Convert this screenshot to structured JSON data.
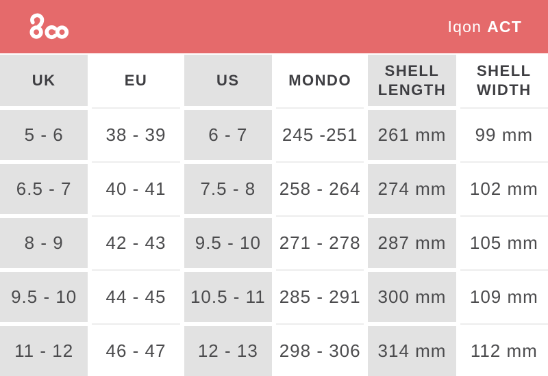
{
  "brand": {
    "logo_name": "loco-logo",
    "product_name": "Iqon",
    "product_variant": "ACT"
  },
  "colors": {
    "accent": "#e56a6b",
    "cell_gray": "#e2e2e2",
    "divider": "#ededed",
    "head_text": "#3e3e42",
    "data_text": "#4b4b4d",
    "logo_white": "#ffffff"
  },
  "chart_data": {
    "type": "table",
    "columns": [
      "UK",
      "EU",
      "US",
      "MONDO",
      "SHELL\nLENGTH",
      "SHELL\nWIDTH"
    ],
    "rows": [
      [
        "5 - 6",
        "38 - 39",
        "6 - 7",
        "245 -251",
        "261 mm",
        "99 mm"
      ],
      [
        "6.5 - 7",
        "40 - 41",
        "7.5 - 8",
        "258 - 264",
        "274 mm",
        "102 mm"
      ],
      [
        "8 - 9",
        "42 - 43",
        "9.5 - 10",
        "271 - 278",
        "287 mm",
        "105 mm"
      ],
      [
        "9.5 - 10",
        "44 - 45",
        "10.5 - 11",
        "285 - 291",
        "300 mm",
        "109 mm"
      ],
      [
        "11 - 12",
        "46 - 47",
        "12 - 13",
        "298 - 306",
        "314 mm",
        "112 mm"
      ]
    ],
    "layout": {
      "shaded_columns": [
        0,
        2,
        4
      ],
      "header_position": "top",
      "grid": "white gaps between cells"
    }
  }
}
